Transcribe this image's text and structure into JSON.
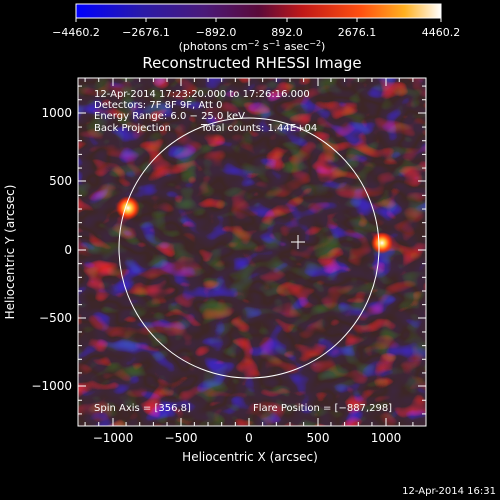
{
  "colorbar": {
    "ticks": [
      "−4460.2",
      "−2676.1",
      "−892.0",
      "892.0",
      "2676.1",
      "4460.2"
    ],
    "unit_pre": "(photons cm",
    "unit_exp1": "−2",
    "unit_mid": " s",
    "unit_exp2": "−1",
    "unit_mid2": " asec",
    "unit_exp3": "−2",
    "unit_post": ")"
  },
  "title": "Reconstructed RHESSI Image",
  "info": {
    "time_range": "12-Apr-2014 17:23:20.000 to 17:26:16.000",
    "detectors": "Detectors: 7F 8F 9F, Att 0",
    "energy_range": "Energy Range: 6.0 − 25.0 keV",
    "method": "Back Projection",
    "total_counts": "Total counts: 1.44E+04"
  },
  "axes": {
    "x_label": "Heliocentric X (arcsec)",
    "y_label": "Heliocentric Y (arcsec)",
    "x_ticks": [
      "−1000",
      "−500",
      "0",
      "500",
      "1000"
    ],
    "y_ticks": [
      "1000",
      "500",
      "0",
      "−500",
      "−1000"
    ]
  },
  "footer": {
    "spin_axis": "Spin Axis = [356,8]",
    "flare_position": "Flare Position = [−887,298]",
    "timestamp": "12-Apr-2014 16:31"
  },
  "colors": {
    "background": "#000000",
    "limb": "#ffffff",
    "cmap_low": "#0000ff",
    "cmap_mid": "#8020a0",
    "cmap_high": "#ffffff"
  }
}
